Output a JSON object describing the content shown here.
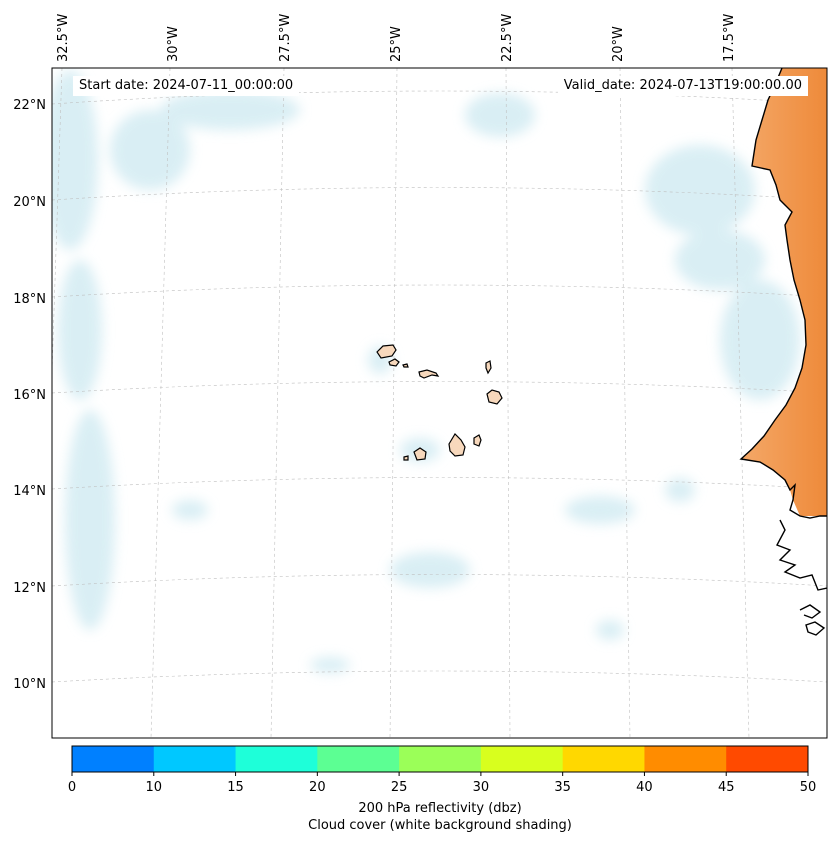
{
  "map": {
    "top_axis": {
      "longitude_labels": [
        "32.5°W",
        "30°W",
        "27.5°W",
        "25°W",
        "22.5°W",
        "20°W",
        "17.5°W"
      ]
    },
    "left_axis": {
      "latitude_labels": [
        "22°N",
        "20°N",
        "18°N",
        "16°N",
        "14°N",
        "12°N",
        "10°N"
      ]
    },
    "start_date_text": "Start date: 2024-07-11_00:00:00",
    "valid_date_text": "Valid_date: 2024-07-13T19:00:00.00",
    "colors": {
      "land": "#f7d8bc",
      "reflectivity_low": "#f4a868",
      "reflectivity_high": "#ee8a3a",
      "cloud_shading": "#cde9f1",
      "gridline": "#bfbfbf",
      "coastline": "#000000"
    }
  },
  "colorbar": {
    "bins": [
      {
        "from": 0,
        "to": 10,
        "color": "#0080ff"
      },
      {
        "from": 10,
        "to": 15,
        "color": "#00c8ff"
      },
      {
        "from": 15,
        "to": 20,
        "color": "#1effd9"
      },
      {
        "from": 20,
        "to": 25,
        "color": "#5cff93"
      },
      {
        "from": 25,
        "to": 30,
        "color": "#9bff58"
      },
      {
        "from": 30,
        "to": 35,
        "color": "#d8ff1e"
      },
      {
        "from": 35,
        "to": 40,
        "color": "#ffd800"
      },
      {
        "from": 40,
        "to": 45,
        "color": "#ff8c00"
      },
      {
        "from": 45,
        "to": 50,
        "color": "#ff4a00"
      }
    ],
    "tick_labels": [
      "0",
      "10",
      "15",
      "20",
      "25",
      "30",
      "35",
      "40",
      "45",
      "50"
    ],
    "label_line1": "200 hPa reflectivity (dbz)",
    "label_line2": "Cloud cover (white background shading)"
  }
}
